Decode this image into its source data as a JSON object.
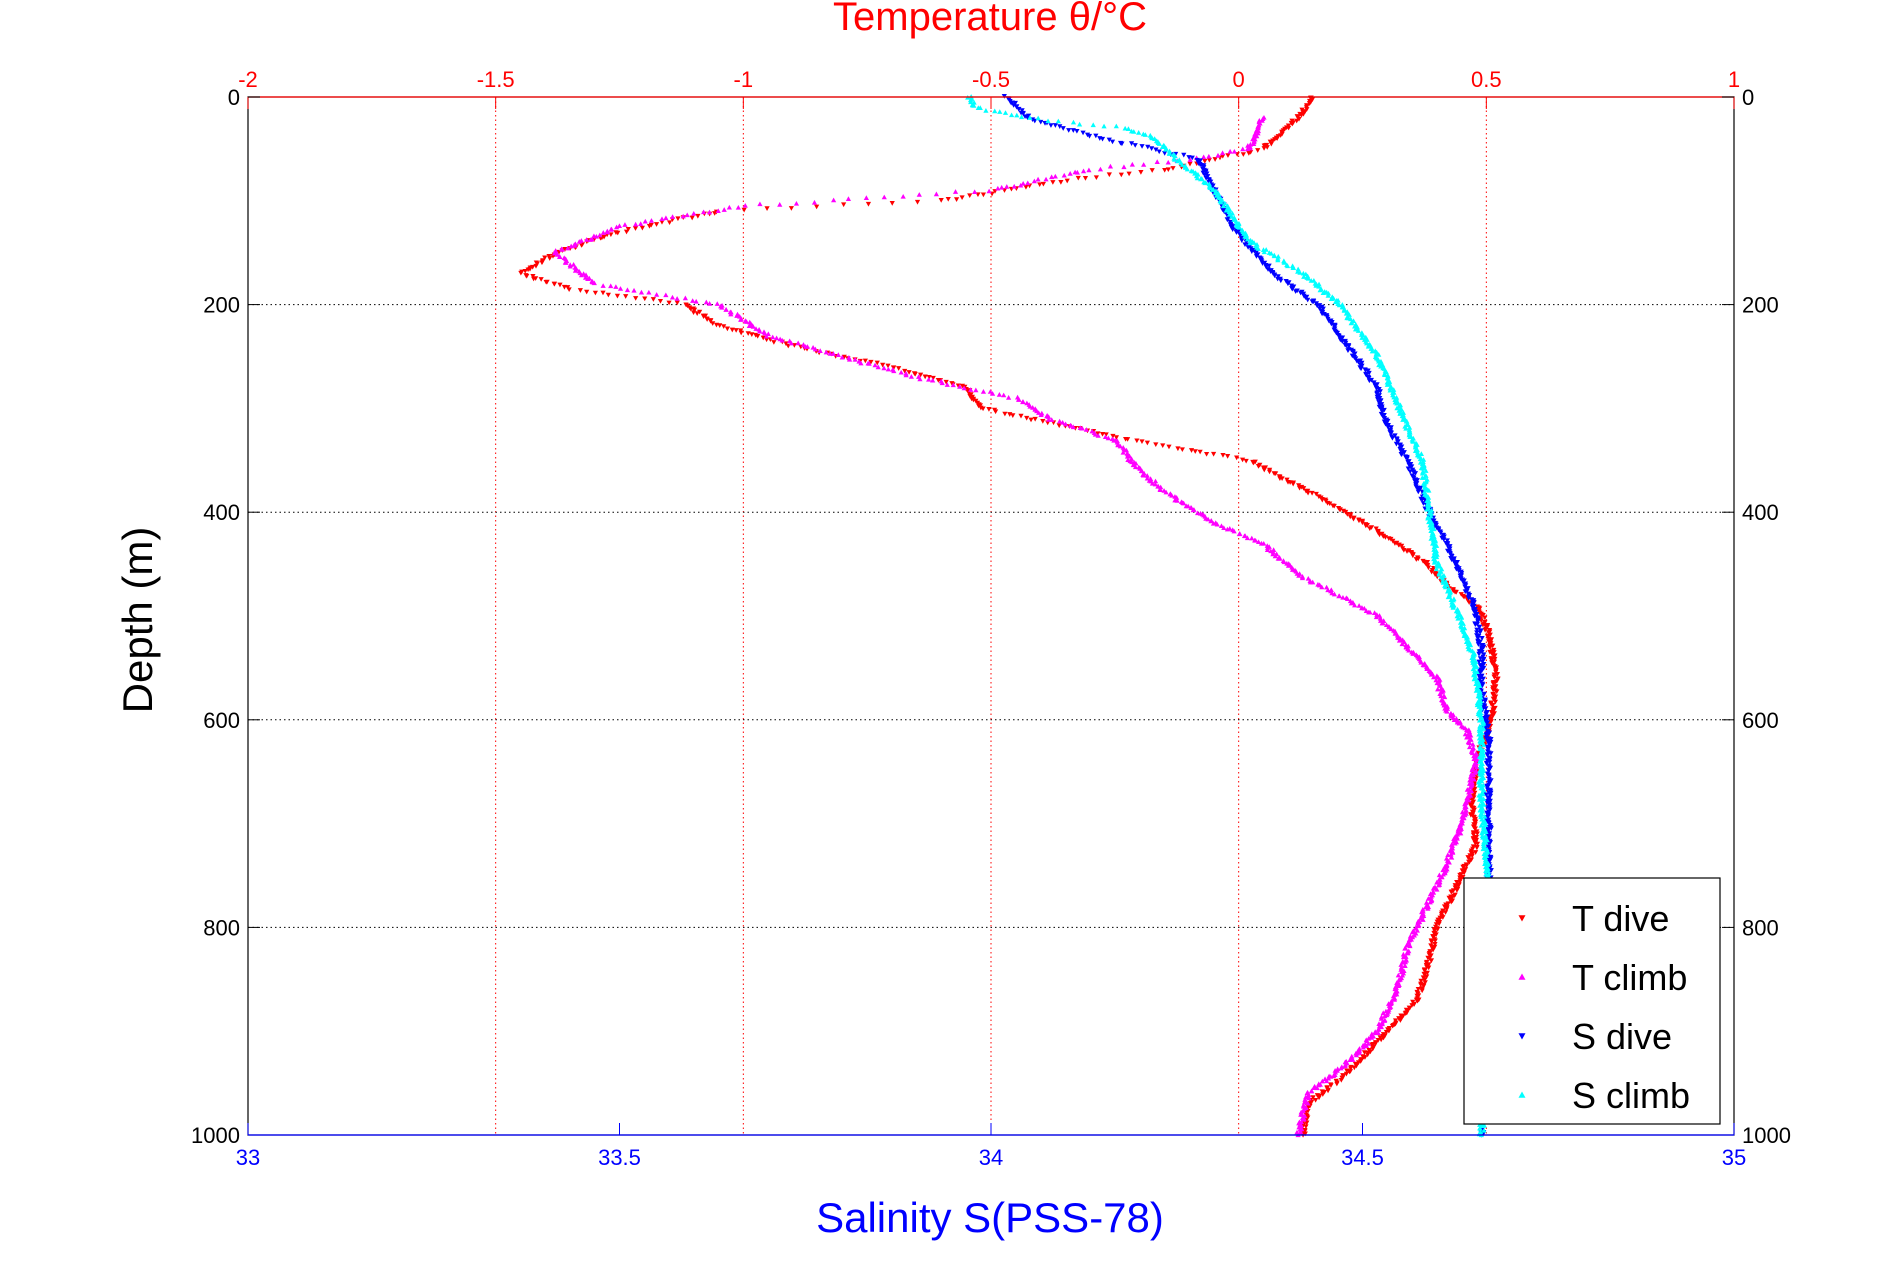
{
  "chart_data": {
    "type": "scatter",
    "title": "",
    "top_axis": {
      "label": "Temperature θ/°C",
      "range": [
        -2,
        1
      ],
      "ticks": [
        -2,
        -1.5,
        -1,
        -0.5,
        0,
        0.5,
        1
      ],
      "tick_labels": [
        "-2",
        "-1.5",
        "-1",
        "-0.5",
        "0",
        "0.5",
        "1"
      ],
      "color": "#ff0000",
      "grid": "vertical dotted red"
    },
    "bottom_axis": {
      "label": "Salinity S(PSS-78)",
      "range": [
        33,
        35
      ],
      "ticks": [
        33,
        33.5,
        34,
        34.5,
        35
      ],
      "tick_labels": [
        "33",
        "33.5",
        "34",
        "34.5",
        "35"
      ],
      "color": "#0000ff"
    },
    "y_axis": {
      "label": "Depth (m)",
      "range": [
        0,
        1000
      ],
      "reversed": true,
      "ticks": [
        0,
        200,
        400,
        600,
        800,
        1000
      ],
      "tick_labels": [
        "0",
        "200",
        "400",
        "600",
        "800",
        "1000"
      ],
      "grid": "horizontal dotted black"
    },
    "legend": {
      "position": "bottom-right"
    },
    "series": [
      {
        "name": "T dive",
        "color": "#ff0000",
        "axis": "temperature",
        "marker": "triangle-down",
        "points": [
          [
            0.15,
            0
          ],
          [
            0.12,
            20
          ],
          [
            0.05,
            50
          ],
          [
            -0.05,
            60
          ],
          [
            -0.15,
            70
          ],
          [
            -0.35,
            80
          ],
          [
            -0.6,
            100
          ],
          [
            -1.05,
            110
          ],
          [
            -1.25,
            130
          ],
          [
            -1.38,
            150
          ],
          [
            -1.45,
            170
          ],
          [
            -1.35,
            185
          ],
          [
            -1.12,
            200
          ],
          [
            -1.05,
            220
          ],
          [
            -0.9,
            240
          ],
          [
            -0.7,
            260
          ],
          [
            -0.55,
            280
          ],
          [
            -0.52,
            300
          ],
          [
            -0.42,
            310
          ],
          [
            -0.22,
            330
          ],
          [
            -0.1,
            340
          ],
          [
            0.02,
            350
          ],
          [
            0.1,
            370
          ],
          [
            0.18,
            390
          ],
          [
            0.25,
            410
          ],
          [
            0.32,
            430
          ],
          [
            0.38,
            450
          ],
          [
            0.42,
            470
          ],
          [
            0.48,
            490
          ],
          [
            0.5,
            510
          ],
          [
            0.51,
            530
          ],
          [
            0.52,
            560
          ],
          [
            0.51,
            600
          ],
          [
            0.48,
            640
          ],
          [
            0.47,
            680
          ],
          [
            0.48,
            720
          ],
          [
            0.44,
            760
          ],
          [
            0.4,
            800
          ],
          [
            0.38,
            840
          ],
          [
            0.36,
            870
          ],
          [
            0.3,
            900
          ],
          [
            0.22,
            940
          ],
          [
            0.14,
            970
          ],
          [
            0.13,
            1000
          ]
        ]
      },
      {
        "name": "T climb",
        "color": "#ff00ff",
        "axis": "temperature",
        "marker": "triangle-up",
        "points": [
          [
            0.05,
            20
          ],
          [
            0.02,
            50
          ],
          [
            -0.1,
            60
          ],
          [
            -0.3,
            70
          ],
          [
            -0.5,
            90
          ],
          [
            -1.0,
            105
          ],
          [
            -1.25,
            125
          ],
          [
            -1.38,
            150
          ],
          [
            -1.3,
            180
          ],
          [
            -1.05,
            200
          ],
          [
            -0.95,
            230
          ],
          [
            -0.8,
            250
          ],
          [
            -0.65,
            270
          ],
          [
            -0.45,
            290
          ],
          [
            -0.38,
            310
          ],
          [
            -0.25,
            330
          ],
          [
            -0.2,
            360
          ],
          [
            -0.15,
            380
          ],
          [
            -0.05,
            410
          ],
          [
            0.05,
            430
          ],
          [
            0.12,
            460
          ],
          [
            0.2,
            480
          ],
          [
            0.28,
            500
          ],
          [
            0.32,
            520
          ],
          [
            0.4,
            560
          ],
          [
            0.42,
            590
          ],
          [
            0.46,
            610
          ],
          [
            0.48,
            640
          ],
          [
            0.45,
            700
          ],
          [
            0.42,
            740
          ],
          [
            0.38,
            780
          ],
          [
            0.34,
            820
          ],
          [
            0.32,
            860
          ],
          [
            0.28,
            900
          ],
          [
            0.22,
            930
          ],
          [
            0.14,
            960
          ],
          [
            0.12,
            1000
          ]
        ]
      },
      {
        "name": "S dive",
        "color": "#0000ff",
        "axis": "salinity",
        "marker": "triangle-down",
        "points": [
          [
            34.02,
            0
          ],
          [
            34.05,
            20
          ],
          [
            34.15,
            40
          ],
          [
            34.28,
            60
          ],
          [
            34.3,
            90
          ],
          [
            34.33,
            130
          ],
          [
            34.38,
            170
          ],
          [
            34.44,
            200
          ],
          [
            34.48,
            240
          ],
          [
            34.52,
            280
          ],
          [
            34.53,
            310
          ],
          [
            34.56,
            350
          ],
          [
            34.59,
            400
          ],
          [
            34.62,
            440
          ],
          [
            34.65,
            490
          ],
          [
            34.66,
            530
          ],
          [
            34.66,
            570
          ],
          [
            34.67,
            620
          ],
          [
            34.67,
            680
          ],
          [
            34.67,
            760
          ],
          [
            34.66,
            850
          ],
          [
            34.66,
            1000
          ]
        ]
      },
      {
        "name": "S climb",
        "color": "#00ffff",
        "axis": "salinity",
        "marker": "triangle-up",
        "points": [
          [
            33.97,
            0
          ],
          [
            33.98,
            10
          ],
          [
            34.05,
            20
          ],
          [
            34.18,
            30
          ],
          [
            34.22,
            40
          ],
          [
            34.25,
            60
          ],
          [
            34.3,
            90
          ],
          [
            34.35,
            140
          ],
          [
            34.42,
            170
          ],
          [
            34.47,
            200
          ],
          [
            34.52,
            250
          ],
          [
            34.55,
            300
          ],
          [
            34.58,
            350
          ],
          [
            34.59,
            400
          ],
          [
            34.6,
            450
          ],
          [
            34.63,
            500
          ],
          [
            34.65,
            540
          ],
          [
            34.66,
            600
          ],
          [
            34.66,
            680
          ],
          [
            34.67,
            760
          ],
          [
            34.67,
            850
          ],
          [
            34.66,
            1000
          ]
        ]
      }
    ]
  }
}
